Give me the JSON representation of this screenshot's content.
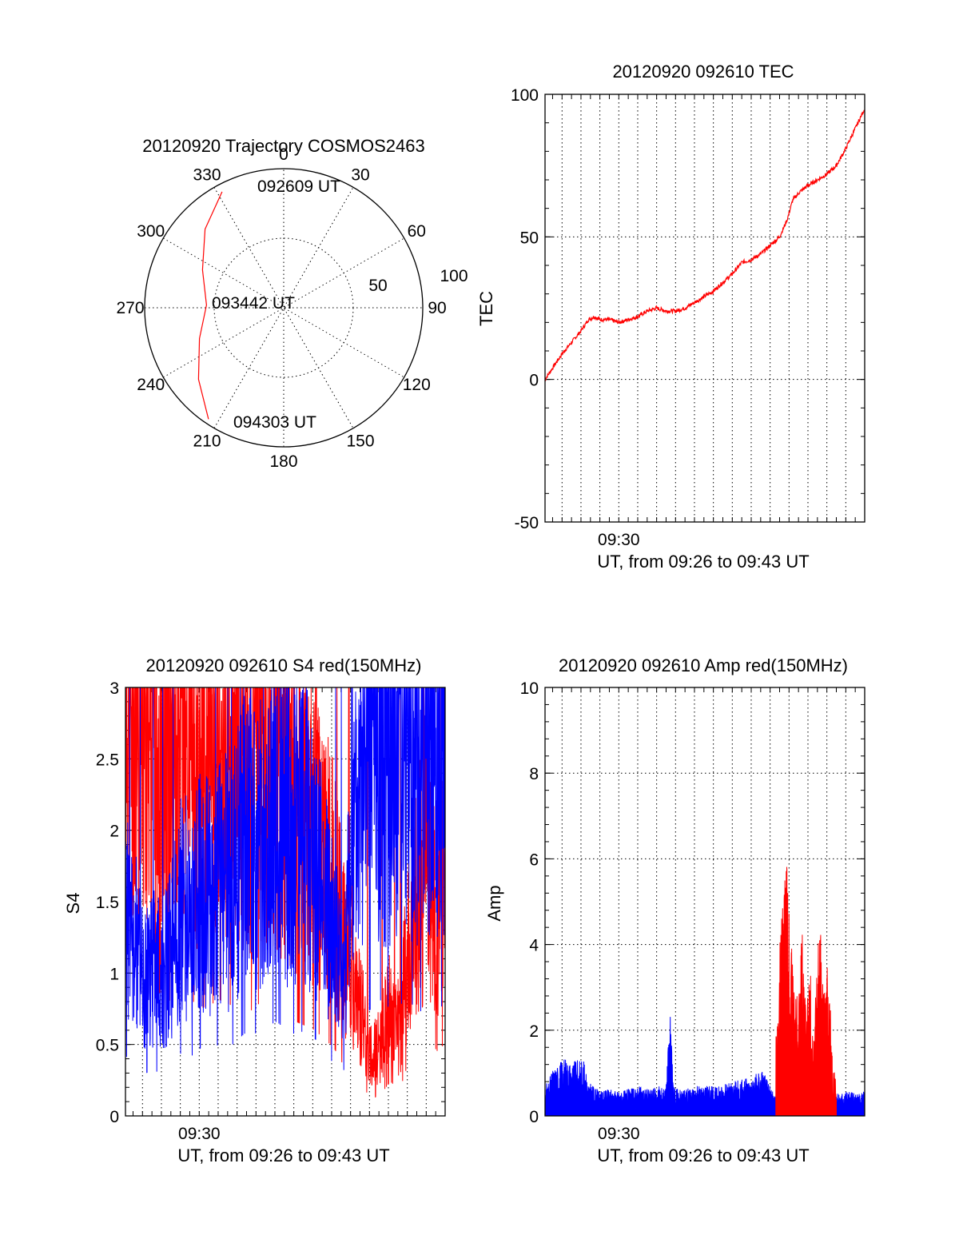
{
  "colors": {
    "red": "#ff0000",
    "blue": "#0000ff",
    "axis": "#000000"
  },
  "chart_data": [
    {
      "type": "polar",
      "title": "20120920 Trajectory COSMOS2463",
      "angle_labels": [
        "0",
        "30",
        "60",
        "90",
        "120",
        "150",
        "180",
        "210",
        "240",
        "270",
        "300",
        "330"
      ],
      "radial_labels": [
        "50",
        "100"
      ],
      "start_label": "092609 UT",
      "mid_label": "093442 UT",
      "end_label": "094303 UT",
      "trajectory": [
        {
          "az": 332,
          "el": 5
        },
        {
          "az": 315,
          "el": 18
        },
        {
          "az": 295,
          "el": 32
        },
        {
          "az": 272,
          "el": 40
        },
        {
          "az": 250,
          "el": 32
        },
        {
          "az": 230,
          "el": 18
        },
        {
          "az": 214,
          "el": 3
        }
      ]
    },
    {
      "type": "line",
      "title": "20120920 092610 TEC",
      "xlabel": "UT, from 09:26 to 09:43 UT",
      "ylabel": "TEC",
      "xlim": [
        26.1,
        43.0
      ],
      "ylim": [
        -50,
        100
      ],
      "x_tick_label": "09:30",
      "x_tick_value": 30,
      "yticks": [
        -50,
        0,
        50,
        100
      ],
      "grid": true,
      "series": [
        {
          "color": "red",
          "points": [
            [
              26.1,
              0
            ],
            [
              26.5,
              4
            ],
            [
              27.0,
              9
            ],
            [
              27.5,
              13
            ],
            [
              28.0,
              17
            ],
            [
              28.4,
              21
            ],
            [
              28.7,
              22
            ],
            [
              29.0,
              21
            ],
            [
              29.5,
              21
            ],
            [
              30.0,
              20
            ],
            [
              30.5,
              21
            ],
            [
              31.0,
              22
            ],
            [
              31.5,
              24
            ],
            [
              32.0,
              25
            ],
            [
              32.5,
              24
            ],
            [
              33.0,
              24
            ],
            [
              33.5,
              25
            ],
            [
              34.0,
              27
            ],
            [
              34.5,
              29
            ],
            [
              35.0,
              31
            ],
            [
              35.5,
              34
            ],
            [
              36.0,
              37
            ],
            [
              36.5,
              41
            ],
            [
              37.0,
              42
            ],
            [
              37.5,
              44
            ],
            [
              38.0,
              47
            ],
            [
              38.5,
              50
            ],
            [
              38.9,
              56
            ],
            [
              39.2,
              63
            ],
            [
              39.6,
              66
            ],
            [
              40.0,
              68
            ],
            [
              40.5,
              70
            ],
            [
              41.0,
              72
            ],
            [
              41.5,
              75
            ],
            [
              42.0,
              81
            ],
            [
              42.5,
              88
            ],
            [
              43.0,
              95
            ]
          ]
        }
      ]
    },
    {
      "type": "line",
      "title": "20120920 092610 S4 red(150MHz)",
      "xlabel": "UT, from 09:26 to 09:43 UT",
      "ylabel": "S4",
      "xlim": [
        26.1,
        43.0
      ],
      "ylim": [
        0,
        3
      ],
      "x_tick_label": "09:30",
      "x_tick_value": 30,
      "yticks": [
        0,
        0.5,
        1,
        1.5,
        2,
        2.5,
        3
      ],
      "grid": true,
      "series": [
        {
          "color": "red",
          "points": [
            [
              26.1,
              2.8
            ],
            [
              26.6,
              2.9
            ],
            [
              27.1,
              2.7
            ],
            [
              27.6,
              2.8
            ],
            [
              28.1,
              2.9
            ],
            [
              28.6,
              2.6
            ],
            [
              29.1,
              2.8
            ],
            [
              29.6,
              2.7
            ],
            [
              30.1,
              2.5
            ],
            [
              30.6,
              2.6
            ],
            [
              31.1,
              2.7
            ],
            [
              31.6,
              2.6
            ],
            [
              32.1,
              2.5
            ],
            [
              32.6,
              2.4
            ],
            [
              33.1,
              2.6
            ],
            [
              33.6,
              2.7
            ],
            [
              34.1,
              2.5
            ],
            [
              34.6,
              2.3
            ],
            [
              35.1,
              2.2
            ],
            [
              35.6,
              2.1
            ],
            [
              36.1,
              2.0
            ],
            [
              36.6,
              1.8
            ],
            [
              37.1,
              1.6
            ],
            [
              37.6,
              1.2
            ],
            [
              38.1,
              0.9
            ],
            [
              38.6,
              0.7
            ],
            [
              39.1,
              0.4
            ],
            [
              39.6,
              0.5
            ],
            [
              40.1,
              0.8
            ],
            [
              40.6,
              0.6
            ],
            [
              41.1,
              1.3
            ],
            [
              41.6,
              1.6
            ],
            [
              42.1,
              1.8
            ],
            [
              42.6,
              1.5
            ],
            [
              43.0,
              1.7
            ]
          ]
        },
        {
          "color": "blue",
          "points": [
            [
              26.1,
              1.4
            ],
            [
              26.6,
              1.2
            ],
            [
              27.1,
              1.0
            ],
            [
              27.6,
              1.05
            ],
            [
              28.1,
              1.0
            ],
            [
              28.6,
              1.2
            ],
            [
              29.1,
              1.5
            ],
            [
              29.6,
              1.4
            ],
            [
              30.1,
              1.6
            ],
            [
              30.6,
              1.5
            ],
            [
              31.1,
              1.7
            ],
            [
              31.6,
              1.6
            ],
            [
              32.1,
              1.8
            ],
            [
              32.6,
              2.0
            ],
            [
              33.1,
              1.9
            ],
            [
              33.6,
              2.1
            ],
            [
              34.1,
              2.2
            ],
            [
              34.6,
              2.0
            ],
            [
              35.1,
              1.9
            ],
            [
              35.6,
              2.0
            ],
            [
              36.1,
              1.8
            ],
            [
              36.6,
              1.6
            ],
            [
              37.1,
              1.2
            ],
            [
              37.6,
              1.0
            ],
            [
              38.1,
              1.8
            ],
            [
              38.6,
              2.3
            ],
            [
              39.1,
              2.5
            ],
            [
              39.6,
              2.7
            ],
            [
              40.1,
              2.5
            ],
            [
              40.6,
              2.6
            ],
            [
              41.1,
              2.7
            ],
            [
              41.6,
              2.4
            ],
            [
              42.1,
              2.6
            ],
            [
              42.6,
              2.5
            ],
            [
              43.0,
              2.6
            ]
          ]
        }
      ]
    },
    {
      "type": "area",
      "title": "20120920 092610 Amp red(150MHz)",
      "xlabel": "UT, from 09:26 to 09:43 UT",
      "ylabel": "Amp",
      "xlim": [
        26.1,
        43.0
      ],
      "ylim": [
        0,
        10
      ],
      "x_tick_label": "09:30",
      "x_tick_value": 30,
      "yticks": [
        0,
        2,
        4,
        6,
        8,
        10
      ],
      "grid": true,
      "series": [
        {
          "color": "blue",
          "points": [
            [
              26.1,
              0.6
            ],
            [
              26.6,
              1.0
            ],
            [
              27.1,
              1.2
            ],
            [
              27.6,
              1.1
            ],
            [
              28.1,
              1.2
            ],
            [
              28.4,
              0.7
            ],
            [
              29.0,
              0.5
            ],
            [
              29.6,
              0.55
            ],
            [
              30.1,
              0.5
            ],
            [
              30.6,
              0.55
            ],
            [
              31.1,
              0.6
            ],
            [
              31.6,
              0.55
            ],
            [
              32.1,
              0.6
            ],
            [
              32.5,
              0.6
            ],
            [
              32.7,
              2.2
            ],
            [
              32.9,
              0.6
            ],
            [
              33.4,
              0.55
            ],
            [
              34.1,
              0.6
            ],
            [
              34.6,
              0.65
            ],
            [
              35.1,
              0.6
            ],
            [
              35.6,
              0.65
            ],
            [
              36.1,
              0.7
            ],
            [
              36.6,
              0.75
            ],
            [
              37.1,
              0.8
            ],
            [
              37.6,
              1.0
            ],
            [
              38.1,
              0.5
            ],
            [
              38.6,
              0.45
            ],
            [
              39.1,
              0.5
            ],
            [
              39.6,
              0.45
            ],
            [
              40.1,
              0.5
            ],
            [
              40.6,
              0.45
            ],
            [
              41.1,
              0.5
            ],
            [
              41.6,
              0.45
            ],
            [
              42.1,
              0.5
            ],
            [
              42.6,
              0.45
            ],
            [
              43.0,
              0.5
            ]
          ]
        },
        {
          "color": "red",
          "points": [
            [
              38.3,
              1.5
            ],
            [
              38.6,
              4.5
            ],
            [
              38.9,
              5.2
            ],
            [
              39.1,
              3.6
            ],
            [
              39.3,
              2.8
            ],
            [
              39.5,
              2.5
            ],
            [
              39.7,
              3.9
            ],
            [
              39.9,
              2.0
            ],
            [
              40.1,
              3.2
            ],
            [
              40.3,
              1.6
            ],
            [
              40.5,
              3.5
            ],
            [
              40.7,
              3.8
            ],
            [
              40.9,
              2.5
            ],
            [
              41.1,
              3.4
            ],
            [
              41.3,
              1.2
            ],
            [
              41.5,
              0.7
            ]
          ]
        }
      ]
    }
  ]
}
